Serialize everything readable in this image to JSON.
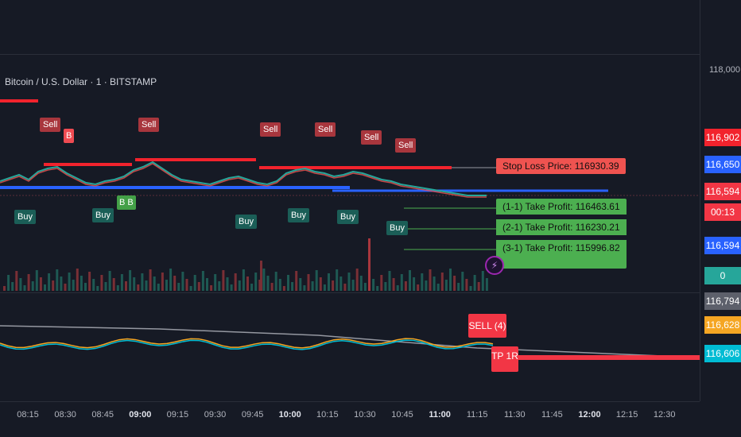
{
  "header": {
    "symbol": "Bitcoin / U.S. Dollar · 1 · BITSTAMP"
  },
  "price_axis": {
    "top_label": "118,000",
    "labels": [
      {
        "text": "116,902",
        "color": "#f2232d"
      },
      {
        "text": "116,650",
        "color": "#2962ff"
      },
      {
        "text": "116,594",
        "color": "#f23645"
      },
      {
        "text": "00:13",
        "color": "#f23645"
      },
      {
        "text": "116,594",
        "color": "#2962ff"
      },
      {
        "text": "0",
        "color": "#26a69a"
      },
      {
        "text": "116,794",
        "color": "#5d606b"
      },
      {
        "text": "116,628",
        "color": "#f5a623"
      },
      {
        "text": "116,606",
        "color": "#00bcd4"
      }
    ]
  },
  "signals": {
    "sell_label": "Sell",
    "buy_label": "Buy",
    "b_label": "B",
    "bb_label": "B B"
  },
  "info_boxes": {
    "stop_loss": "Stop Loss Price: 116930.39",
    "tp1": "(1-1) Take Profit: 116463.61",
    "tp2": "(2-1) Take Profit: 116230.21",
    "tp3": "(3-1) Take Profit: 115996.82"
  },
  "lower_pane": {
    "sell_box": "SELL (4)",
    "tp_box": "TP 1R"
  },
  "time_axis": [
    {
      "text": "08:15",
      "bold": false
    },
    {
      "text": "08:30",
      "bold": false
    },
    {
      "text": "08:45",
      "bold": false
    },
    {
      "text": "09:00",
      "bold": true
    },
    {
      "text": "09:15",
      "bold": false
    },
    {
      "text": "09:30",
      "bold": false
    },
    {
      "text": "09:45",
      "bold": false
    },
    {
      "text": "10:00",
      "bold": true
    },
    {
      "text": "10:15",
      "bold": false
    },
    {
      "text": "10:30",
      "bold": false
    },
    {
      "text": "10:45",
      "bold": false
    },
    {
      "text": "11:00",
      "bold": true
    },
    {
      "text": "11:15",
      "bold": false
    },
    {
      "text": "11:30",
      "bold": false
    },
    {
      "text": "11:45",
      "bold": false
    },
    {
      "text": "12:00",
      "bold": true
    },
    {
      "text": "12:15",
      "bold": false
    },
    {
      "text": "12:30",
      "bold": false
    }
  ],
  "colors": {
    "sell": "#a8363d",
    "buy": "#1b5e57",
    "stop": "#ef5350",
    "tp": "#4caf50",
    "blue_line": "#2962ff",
    "red_line": "#f2232d"
  }
}
